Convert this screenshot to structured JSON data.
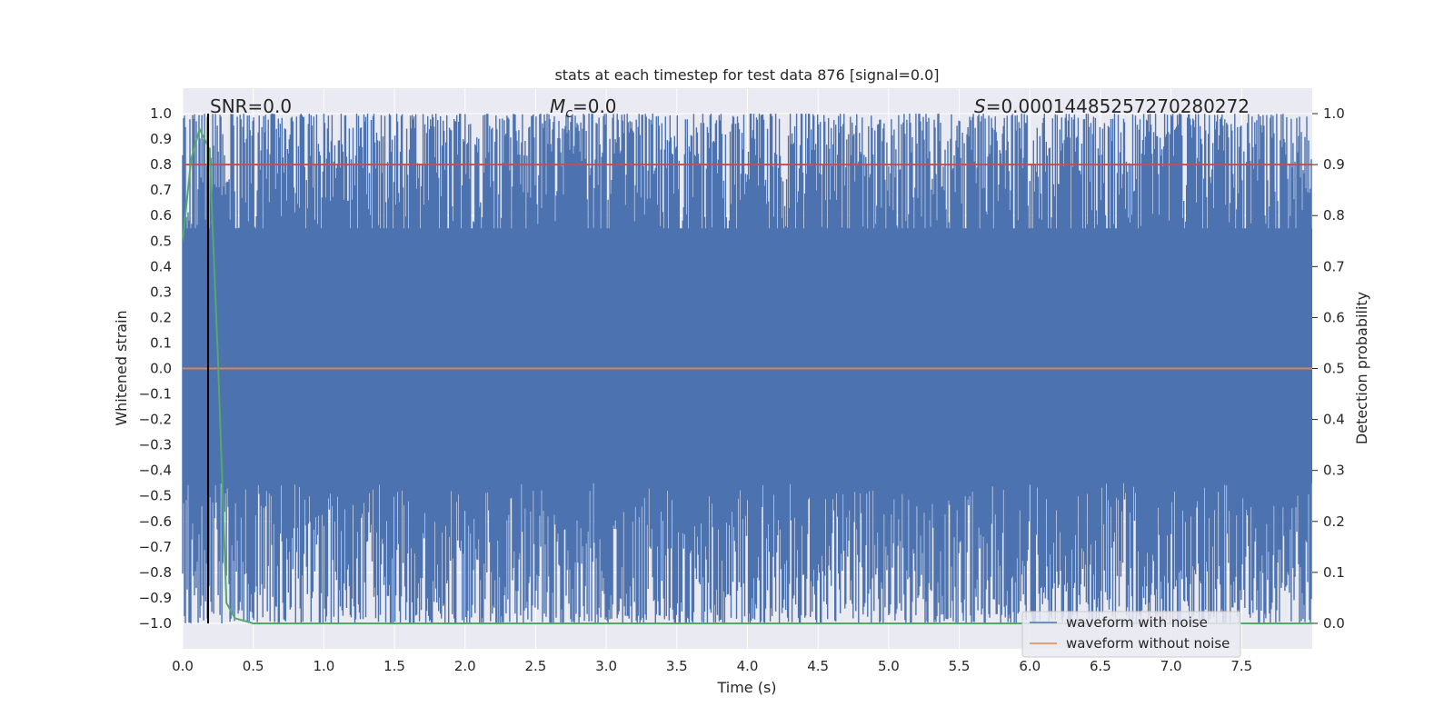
{
  "chart_data": {
    "type": "line",
    "title": "stats at each timestep for test data 876 [signal=0.0]",
    "xlabel": "Time (s)",
    "ylabel": "Whitened strain",
    "y2label": "Detection probability",
    "xlim": [
      0.0,
      8.0
    ],
    "ylim": [
      -1.1,
      1.1
    ],
    "y2lim": [
      -0.05,
      1.05
    ],
    "grid": true,
    "legend_position": "lower-right",
    "x_ticks": [
      0.0,
      0.5,
      1.0,
      1.5,
      2.0,
      2.5,
      3.0,
      3.5,
      4.0,
      4.5,
      5.0,
      5.5,
      6.0,
      6.5,
      7.0,
      7.5
    ],
    "x_tick_labels": [
      "0.0",
      "0.5",
      "1.0",
      "1.5",
      "2.0",
      "2.5",
      "3.0",
      "3.5",
      "4.0",
      "4.5",
      "5.0",
      "5.5",
      "6.0",
      "6.5",
      "7.0",
      "7.5"
    ],
    "y_ticks": [
      1.0,
      0.9,
      0.8,
      0.7,
      0.6,
      0.5,
      0.4,
      0.3,
      0.2,
      0.1,
      0.0,
      -0.1,
      -0.2,
      -0.3,
      -0.4,
      -0.5,
      -0.6,
      -0.7,
      -0.8,
      -0.9,
      -1.0
    ],
    "y_tick_labels": [
      "1.0",
      "0.9",
      "0.8",
      "0.7",
      "0.6",
      "0.5",
      "0.4",
      "0.3",
      "0.2",
      "0.1",
      "0.0",
      "−0.1",
      "−0.2",
      "−0.3",
      "−0.4",
      "−0.5",
      "−0.6",
      "−0.7",
      "−0.8",
      "−0.9",
      "−1.0"
    ],
    "y2_ticks": [
      1.0,
      0.9,
      0.8,
      0.7,
      0.6,
      0.5,
      0.4,
      0.3,
      0.2,
      0.1,
      0.0
    ],
    "y2_tick_labels": [
      "1.0",
      "0.9",
      "0.8",
      "0.7",
      "0.6",
      "0.5",
      "0.4",
      "0.3",
      "0.2",
      "0.1",
      "0.0"
    ],
    "annotations": {
      "snr": "SNR=0.0",
      "mc_symbol": "M",
      "mc_sub": "c",
      "mc_value": "=0.0",
      "s_symbol": "S",
      "s_value": "=0.00014485257270280272"
    },
    "series": [
      {
        "name": "waveform with noise",
        "color": "#4c72b0",
        "x_range": [
          0.0,
          8.0
        ],
        "y_range": [
          -1.0,
          1.0
        ],
        "description_values": {
          "max": 1.0,
          "min": -1.0
        }
      },
      {
        "name": "waveform without noise",
        "color": "#dd8452",
        "x": [
          0.0,
          8.0
        ],
        "y": [
          0.0,
          0.0
        ]
      },
      {
        "name": "",
        "color": "#c44e52",
        "axis": "right",
        "x": [
          0.0,
          8.0
        ],
        "y": [
          0.9,
          0.9
        ]
      },
      {
        "name": "",
        "color": "#55a868",
        "axis": "right",
        "x": [
          0.0,
          0.06,
          0.12,
          0.19,
          0.25,
          0.31,
          0.37,
          0.5,
          8.0
        ],
        "y": [
          0.75,
          0.91,
          0.97,
          0.93,
          0.52,
          0.04,
          0.01,
          0.0,
          0.0
        ]
      }
    ],
    "vertical_line": {
      "x": 0.18,
      "color": "#000000"
    },
    "colors": {
      "background": "#eaeaf2",
      "grid": "#ffffff",
      "noisy": "#4c72b0",
      "clean": "#dd8452",
      "threshold": "#c44e52",
      "probability": "#55a868"
    }
  }
}
